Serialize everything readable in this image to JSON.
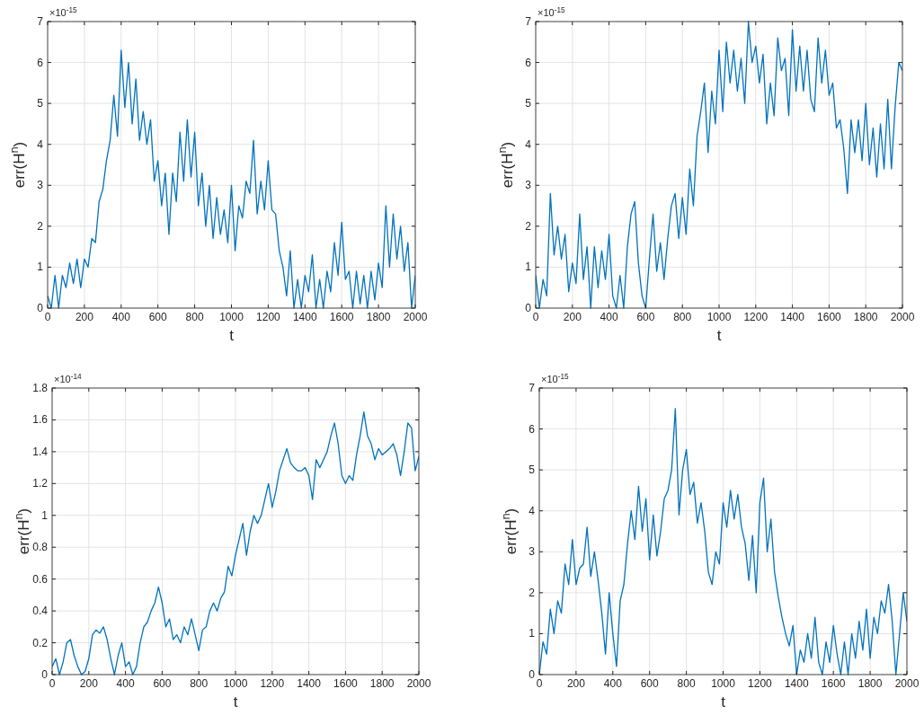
{
  "chart_data": [
    {
      "type": "line",
      "xlabel": "t",
      "ylabel": "err(H$^{n}$)",
      "annotations": [
        "×10$^{-15}$"
      ],
      "grid": true,
      "xlim": [
        0,
        2000
      ],
      "xticks": [
        0,
        200,
        400,
        600,
        800,
        1000,
        1200,
        1400,
        1600,
        1800,
        2000
      ],
      "ylim": [
        0,
        7
      ],
      "yticks": [
        0,
        1,
        2,
        3,
        4,
        5,
        6,
        7
      ],
      "x": [
        0,
        20,
        40,
        60,
        80,
        100,
        120,
        140,
        160,
        180,
        200,
        220,
        240,
        260,
        280,
        300,
        320,
        340,
        360,
        380,
        400,
        420,
        440,
        460,
        480,
        500,
        520,
        540,
        560,
        580,
        600,
        620,
        640,
        660,
        680,
        700,
        720,
        740,
        760,
        780,
        800,
        820,
        840,
        860,
        880,
        900,
        920,
        940,
        960,
        980,
        1000,
        1020,
        1040,
        1060,
        1080,
        1100,
        1120,
        1140,
        1160,
        1180,
        1200,
        1220,
        1240,
        1260,
        1280,
        1300,
        1320,
        1340,
        1360,
        1380,
        1400,
        1420,
        1440,
        1460,
        1480,
        1500,
        1520,
        1540,
        1560,
        1580,
        1600,
        1620,
        1640,
        1660,
        1680,
        1700,
        1720,
        1740,
        1760,
        1780,
        1800,
        1820,
        1840,
        1860,
        1880,
        1900,
        1920,
        1940,
        1960,
        1980,
        2000
      ],
      "series": [
        {
          "color": "#0072bd",
          "values": [
            0.3,
            0,
            0.8,
            0,
            0.8,
            0.5,
            1.1,
            0.6,
            1.2,
            0.5,
            1.2,
            1.0,
            1.7,
            1.6,
            2.6,
            2.9,
            3.6,
            4.1,
            5.2,
            4.2,
            6.3,
            4.9,
            6.0,
            4.5,
            5.6,
            4.1,
            4.8,
            4.0,
            4.6,
            3.1,
            3.6,
            2.5,
            3.3,
            1.8,
            3.3,
            2.6,
            4.3,
            3.1,
            4.6,
            3.2,
            4.3,
            2.5,
            3.3,
            2.0,
            3.0,
            1.7,
            2.7,
            1.8,
            2.4,
            1.6,
            3.0,
            1.4,
            2.5,
            2.2,
            3.1,
            2.8,
            4.1,
            2.3,
            3.1,
            2.4,
            3.6,
            2.4,
            2.3,
            1.4,
            1.0,
            0.3,
            1.4,
            0,
            0.7,
            0,
            0.8,
            0.4,
            1.3,
            0,
            0.7,
            0,
            0.9,
            0.4,
            1.6,
            0.8,
            2.1,
            0.7,
            0.9,
            0,
            0.9,
            0.1,
            0.8,
            0,
            0.9,
            0.2,
            1.1,
            0.5,
            2.5,
            1.0,
            2.3,
            1.2,
            2.0,
            0.9,
            1.6,
            0,
            0.8
          ]
        }
      ]
    },
    {
      "type": "line",
      "xlabel": "t",
      "ylabel": "err(H$^{n}$)",
      "annotations": [
        "×10$^{-15}$"
      ],
      "grid": true,
      "xlim": [
        0,
        2000
      ],
      "xticks": [
        0,
        200,
        400,
        600,
        800,
        1000,
        1200,
        1400,
        1600,
        1800,
        2000
      ],
      "ylim": [
        0,
        7
      ],
      "yticks": [
        0,
        1,
        2,
        3,
        4,
        5,
        6,
        7
      ],
      "x": [
        0,
        20,
        40,
        60,
        80,
        100,
        120,
        140,
        160,
        180,
        200,
        220,
        240,
        260,
        280,
        300,
        320,
        340,
        360,
        380,
        400,
        420,
        440,
        460,
        480,
        500,
        520,
        540,
        560,
        580,
        600,
        620,
        640,
        660,
        680,
        700,
        720,
        740,
        760,
        780,
        800,
        820,
        840,
        860,
        880,
        900,
        920,
        940,
        960,
        980,
        1000,
        1020,
        1040,
        1060,
        1080,
        1100,
        1120,
        1140,
        1160,
        1180,
        1200,
        1220,
        1240,
        1260,
        1280,
        1300,
        1320,
        1340,
        1360,
        1380,
        1400,
        1420,
        1440,
        1460,
        1480,
        1500,
        1520,
        1540,
        1560,
        1580,
        1600,
        1620,
        1640,
        1660,
        1680,
        1700,
        1720,
        1740,
        1760,
        1780,
        1800,
        1820,
        1840,
        1860,
        1880,
        1900,
        1920,
        1940,
        1960,
        1980,
        2000
      ],
      "series": [
        {
          "color": "#0072bd",
          "values": [
            0.8,
            0,
            0.7,
            0.3,
            2.8,
            1.3,
            2.0,
            1.2,
            1.8,
            0.4,
            1.1,
            0.6,
            2.3,
            0.7,
            1.5,
            0,
            1.5,
            0.5,
            1.4,
            0.7,
            1.8,
            0.3,
            0,
            0.8,
            0,
            1.5,
            2.3,
            2.6,
            1.1,
            0.3,
            0,
            1.2,
            2.3,
            0.9,
            1.6,
            0.7,
            1.7,
            2.5,
            2.8,
            1.7,
            2.7,
            1.8,
            3.4,
            2.5,
            4.2,
            4.8,
            5.5,
            3.8,
            5.3,
            4.5,
            6.3,
            4.8,
            6.5,
            5.5,
            6.3,
            5.3,
            6.1,
            5.0,
            7.0,
            6.0,
            6.4,
            5.5,
            6.2,
            4.5,
            5.5,
            4.7,
            6.6,
            5.8,
            6.1,
            4.7,
            6.8,
            5.3,
            6.4,
            5.3,
            6.3,
            5.1,
            4.8,
            6.6,
            5.5,
            6.3,
            5.2,
            5.5,
            4.4,
            4.6,
            3.9,
            2.8,
            4.6,
            3.8,
            4.6,
            3.6,
            5.0,
            3.5,
            4.4,
            3.2,
            4.5,
            3.4,
            5.1,
            3.4,
            4.9,
            6.0,
            5.8
          ]
        }
      ]
    },
    {
      "type": "line",
      "xlabel": "t",
      "ylabel": "err(H$^{n}$)",
      "annotations": [
        "×10$^{-14}$"
      ],
      "grid": true,
      "xlim": [
        0,
        2000
      ],
      "xticks": [
        0,
        200,
        400,
        600,
        800,
        1000,
        1200,
        1400,
        1600,
        1800,
        2000
      ],
      "ylim": [
        0,
        1.8
      ],
      "yticks": [
        0,
        0.2,
        0.4,
        0.6,
        0.8,
        1,
        1.2,
        1.4,
        1.6,
        1.8
      ],
      "x": [
        0,
        20,
        40,
        60,
        80,
        100,
        120,
        140,
        160,
        180,
        200,
        220,
        240,
        260,
        280,
        300,
        320,
        340,
        360,
        380,
        400,
        420,
        440,
        460,
        480,
        500,
        520,
        540,
        560,
        580,
        600,
        620,
        640,
        660,
        680,
        700,
        720,
        740,
        760,
        780,
        800,
        820,
        840,
        860,
        880,
        900,
        920,
        940,
        960,
        980,
        1000,
        1020,
        1040,
        1060,
        1080,
        1100,
        1120,
        1140,
        1160,
        1180,
        1200,
        1220,
        1240,
        1260,
        1280,
        1300,
        1320,
        1340,
        1360,
        1380,
        1400,
        1420,
        1440,
        1460,
        1480,
        1500,
        1520,
        1540,
        1560,
        1580,
        1600,
        1620,
        1640,
        1660,
        1680,
        1700,
        1720,
        1740,
        1760,
        1780,
        1800,
        1820,
        1840,
        1860,
        1880,
        1900,
        1920,
        1940,
        1960,
        1980,
        2000
      ],
      "series": [
        {
          "color": "#0072bd",
          "values": [
            0.05,
            0.1,
            0,
            0.08,
            0.2,
            0.22,
            0.12,
            0.05,
            0,
            0.02,
            0.1,
            0.25,
            0.28,
            0.26,
            0.3,
            0.22,
            0.1,
            0,
            0.12,
            0.2,
            0.05,
            0.08,
            0,
            0.05,
            0.2,
            0.3,
            0.33,
            0.4,
            0.45,
            0.55,
            0.45,
            0.3,
            0.35,
            0.22,
            0.25,
            0.2,
            0.3,
            0.25,
            0.35,
            0.25,
            0.15,
            0.28,
            0.3,
            0.4,
            0.45,
            0.4,
            0.48,
            0.52,
            0.68,
            0.62,
            0.75,
            0.85,
            0.95,
            0.75,
            0.9,
            1.0,
            0.95,
            1.0,
            1.1,
            1.2,
            1.05,
            1.15,
            1.28,
            1.35,
            1.42,
            1.33,
            1.3,
            1.28,
            1.28,
            1.3,
            1.25,
            1.1,
            1.35,
            1.3,
            1.35,
            1.4,
            1.5,
            1.58,
            1.45,
            1.25,
            1.2,
            1.25,
            1.22,
            1.38,
            1.5,
            1.65,
            1.5,
            1.45,
            1.35,
            1.42,
            1.38,
            1.4,
            1.42,
            1.45,
            1.38,
            1.25,
            1.4,
            1.58,
            1.55,
            1.28,
            1.37
          ]
        }
      ]
    },
    {
      "type": "line",
      "xlabel": "t",
      "ylabel": "err(H$^{n}$)",
      "annotations": [
        "×10$^{-15}$"
      ],
      "grid": true,
      "xlim": [
        0,
        2000
      ],
      "xticks": [
        0,
        200,
        400,
        600,
        800,
        1000,
        1200,
        1400,
        1600,
        1800,
        2000
      ],
      "ylim": [
        0,
        7
      ],
      "yticks": [
        0,
        1,
        2,
        3,
        4,
        5,
        6,
        7
      ],
      "x": [
        0,
        20,
        40,
        60,
        80,
        100,
        120,
        140,
        160,
        180,
        200,
        220,
        240,
        260,
        280,
        300,
        320,
        340,
        360,
        380,
        400,
        420,
        440,
        460,
        480,
        500,
        520,
        540,
        560,
        580,
        600,
        620,
        640,
        660,
        680,
        700,
        720,
        740,
        760,
        780,
        800,
        820,
        840,
        860,
        880,
        900,
        920,
        940,
        960,
        980,
        1000,
        1020,
        1040,
        1060,
        1080,
        1100,
        1120,
        1140,
        1160,
        1180,
        1200,
        1220,
        1240,
        1260,
        1280,
        1300,
        1320,
        1340,
        1360,
        1380,
        1400,
        1420,
        1440,
        1460,
        1480,
        1500,
        1520,
        1540,
        1560,
        1580,
        1600,
        1620,
        1640,
        1660,
        1680,
        1700,
        1720,
        1740,
        1760,
        1780,
        1800,
        1820,
        1840,
        1860,
        1880,
        1900,
        1920,
        1940,
        1960,
        1980,
        2000
      ],
      "series": [
        {
          "color": "#0072bd",
          "values": [
            0,
            0.8,
            0.5,
            1.6,
            1.0,
            1.8,
            1.5,
            2.7,
            2.2,
            3.3,
            2.2,
            2.6,
            2.7,
            3.6,
            2.4,
            3.0,
            2.3,
            1.5,
            0.5,
            2.0,
            1.0,
            0.2,
            1.8,
            2.2,
            3.2,
            4.0,
            3.3,
            4.6,
            3.5,
            4.3,
            2.8,
            3.9,
            2.9,
            3.5,
            4.3,
            4.5,
            5.0,
            6.5,
            3.9,
            5.0,
            5.5,
            4.4,
            4.7,
            3.7,
            4.2,
            3.5,
            2.5,
            2.2,
            3.0,
            2.7,
            4.2,
            3.6,
            4.5,
            3.8,
            4.4,
            3.6,
            3.2,
            2.3,
            3.4,
            2.0,
            4.2,
            4.8,
            3.0,
            3.8,
            2.5,
            1.9,
            1.4,
            1.0,
            0.7,
            1.2,
            0,
            0.6,
            0.3,
            1.0,
            0.4,
            1.4,
            0.3,
            0,
            0.8,
            0.3,
            1.2,
            0.5,
            0,
            0.8,
            0,
            1.0,
            0.4,
            1.3,
            0.6,
            1.6,
            0.4,
            1.4,
            1.0,
            1.8,
            1.5,
            2.2,
            1.3,
            0,
            1.0,
            2.0,
            1.3
          ]
        }
      ]
    }
  ]
}
